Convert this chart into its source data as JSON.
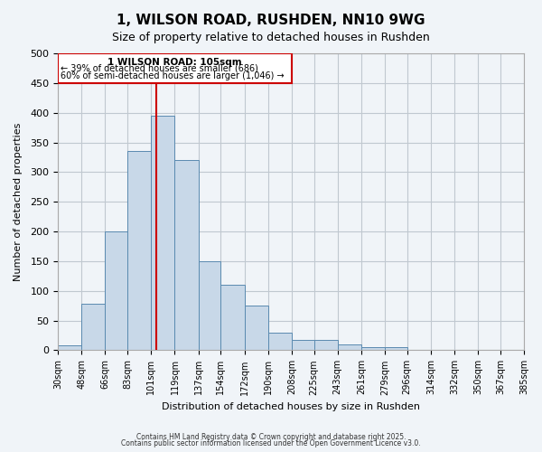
{
  "title": "1, WILSON ROAD, RUSHDEN, NN10 9WG",
  "subtitle": "Size of property relative to detached houses in Rushden",
  "xlabel": "Distribution of detached houses by size in Rushden",
  "ylabel": "Number of detached properties",
  "bin_labels": [
    "30sqm",
    "48sqm",
    "66sqm",
    "83sqm",
    "101sqm",
    "119sqm",
    "137sqm",
    "154sqm",
    "172sqm",
    "190sqm",
    "208sqm",
    "225sqm",
    "243sqm",
    "261sqm",
    "279sqm",
    "296sqm",
    "314sqm",
    "332sqm",
    "350sqm",
    "367sqm",
    "385sqm"
  ],
  "bin_edges": [
    30,
    48,
    66,
    83,
    101,
    119,
    137,
    154,
    172,
    190,
    208,
    225,
    243,
    261,
    279,
    296,
    314,
    332,
    350,
    367,
    385
  ],
  "counts": [
    8,
    78,
    200,
    335,
    395,
    320,
    150,
    110,
    75,
    30,
    18,
    18,
    10,
    5,
    5,
    0,
    0,
    0,
    0,
    0
  ],
  "bar_facecolor": "#c8d8e8",
  "bar_edgecolor": "#5a8ab0",
  "vline_x": 105,
  "vline_color": "#cc0000",
  "annotation_title": "1 WILSON ROAD: 105sqm",
  "annotation_line1": "← 39% of detached houses are smaller (686)",
  "annotation_line2": "60% of semi-detached houses are larger (1,046) →",
  "annotation_box_color": "#cc0000",
  "ylim": [
    0,
    500
  ],
  "yticks": [
    0,
    50,
    100,
    150,
    200,
    250,
    300,
    350,
    400,
    450,
    500
  ],
  "grid_color": "#c0c8d0",
  "background_color": "#f0f4f8",
  "footer1": "Contains HM Land Registry data © Crown copyright and database right 2025.",
  "footer2": "Contains public sector information licensed under the Open Government Licence v3.0."
}
